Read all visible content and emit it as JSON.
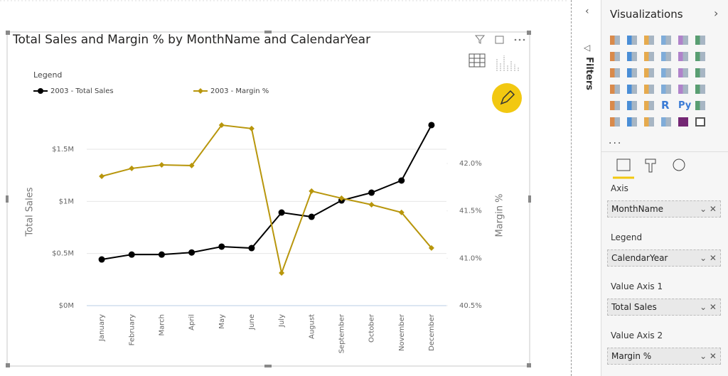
{
  "chart_data": {
    "type": "line",
    "title": "Total Sales and Margin % by MonthName and CalendarYear",
    "legend_title": "Legend",
    "legend_position": "top-left",
    "y_label": "Total Sales",
    "y2_label": "Margin %",
    "categories": [
      "January",
      "February",
      "March",
      "April",
      "May",
      "June",
      "July",
      "August",
      "September",
      "October",
      "November",
      "December"
    ],
    "series": [
      {
        "name": "2003 - Total Sales",
        "color": "#000000",
        "axis": "y",
        "values": [
          443000,
          490000,
          490000,
          510000,
          566000,
          552000,
          893000,
          852000,
          1009000,
          1084000,
          1200000,
          1732000
        ]
      },
      {
        "name": "2003 - Margin %",
        "color": "#b8960c",
        "axis": "y2",
        "values": [
          41.865,
          41.948,
          41.985,
          41.978,
          42.405,
          42.368,
          40.845,
          41.708,
          41.633,
          41.565,
          41.483,
          41.108
        ]
      }
    ],
    "ylim": [
      0,
      1800000
    ],
    "yticks": [
      {
        "value": 0,
        "label": "$0M"
      },
      {
        "value": 500000,
        "label": "$0.5M"
      },
      {
        "value": 1000000,
        "label": "$1M"
      },
      {
        "value": 1500000,
        "label": "$1.5M"
      }
    ],
    "y2lim": [
      40.5,
      42.48
    ],
    "y2ticks": [
      {
        "value": 40.5,
        "label": "40.5%"
      },
      {
        "value": 41,
        "label": "41.0%"
      },
      {
        "value": 41.5,
        "label": "41.5%"
      },
      {
        "value": 42,
        "label": "42.0%"
      }
    ],
    "grid": true
  },
  "panel": {
    "title": "Visualizations",
    "filters": "Filters",
    "icon_labels": [
      "R",
      "Py"
    ],
    "more": "...",
    "wells": [
      {
        "label": "Axis",
        "field": "MonthName"
      },
      {
        "label": "Legend",
        "field": "CalendarYear"
      },
      {
        "label": "Value Axis 1",
        "field": "Total Sales"
      },
      {
        "label": "Value Axis 2",
        "field": "Margin %"
      }
    ]
  }
}
